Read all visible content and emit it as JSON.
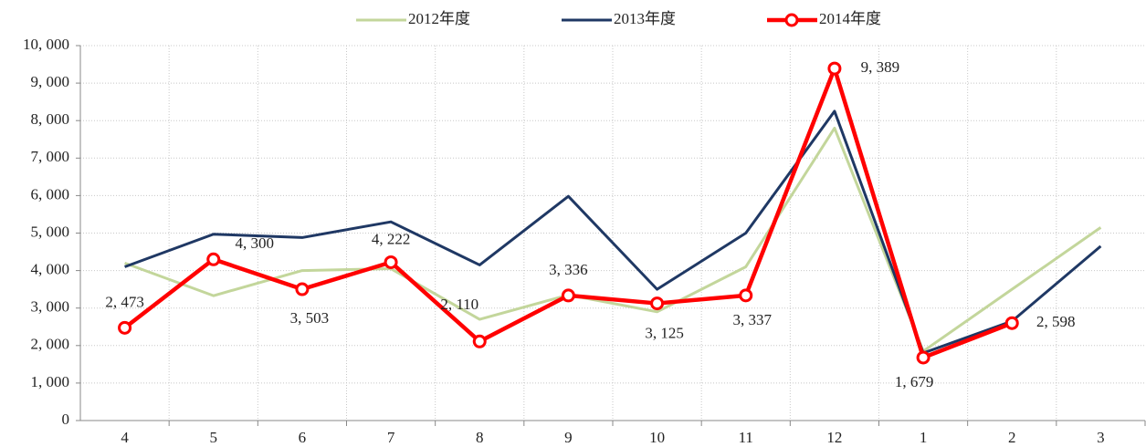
{
  "chart_data": {
    "type": "line",
    "categories": [
      "4",
      "5",
      "6",
      "7",
      "8",
      "9",
      "10",
      "11",
      "12",
      "1",
      "2",
      "3"
    ],
    "series": [
      {
        "name": "2012年度",
        "color": "#c3d69b",
        "values": [
          4200,
          3330,
          4000,
          4050,
          2700,
          3350,
          2900,
          4100,
          7800,
          1850,
          3500,
          5150
        ]
      },
      {
        "name": "2013年度",
        "color": "#1f3864",
        "values": [
          4100,
          4970,
          4880,
          5300,
          4150,
          5980,
          3500,
          5000,
          8250,
          1800,
          2650,
          4650
        ]
      },
      {
        "name": "2014年度",
        "color": "#ff0000",
        "marker": "circle",
        "values": [
          2473,
          4300,
          3503,
          4222,
          2110,
          3336,
          3125,
          3337,
          9389,
          1679,
          2598,
          null
        ],
        "value_labels": [
          "2, 473",
          "4, 300",
          "3, 503",
          "4, 222",
          "2, 110",
          "3, 336",
          "3, 125",
          "3, 337",
          "9, 389",
          "1, 679",
          "2, 598",
          null
        ]
      }
    ],
    "ylim": [
      0,
      10000
    ],
    "yticks": [
      0,
      {
        "value": 1000,
        "label": "1, 000"
      },
      {
        "value": 2000,
        "label": "2, 000"
      },
      {
        "value": 3000,
        "label": "3, 000"
      },
      {
        "value": 4000,
        "label": "4, 000"
      },
      {
        "value": 5000,
        "label": "5, 000"
      },
      {
        "value": 6000,
        "label": "6, 000"
      },
      {
        "value": 7000,
        "label": "7, 000"
      },
      {
        "value": 8000,
        "label": "8, 000"
      },
      {
        "value": 9000,
        "label": "9, 000"
      },
      {
        "value": 10000,
        "label": "10, 000"
      }
    ],
    "grid": true,
    "legend": "top"
  }
}
